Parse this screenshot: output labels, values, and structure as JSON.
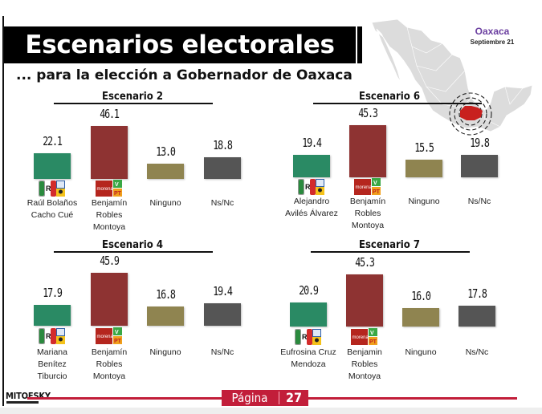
{
  "header": {
    "title": "Escenarios electorales",
    "subtitle": "... para la elección a Gobernador de Oaxaca"
  },
  "map": {
    "state": "Oaxaca",
    "date": "Septiembre 21",
    "highlight_color": "#c8201e"
  },
  "footer": {
    "brand": "MITOFSKY",
    "page_label": "Página",
    "page_number": "27",
    "accent_color": "#c21e3a"
  },
  "colors": {
    "candidate_a": "#2a8a64",
    "candidate_b": "#8e3332",
    "ninguno": "#8f8450",
    "nsnc": "#555555"
  },
  "chart_data": [
    {
      "type": "bar",
      "title": "Escenario 2",
      "categories": [
        "Raúl Bolaños Cacho Cué",
        "Benjamín Robles Montoya",
        "Ninguno",
        "Ns/Nc"
      ],
      "label_lines": [
        [
          "Raúl Bolaños",
          "Cacho Cué"
        ],
        [
          "Benjamín",
          "Robles",
          "Montoya"
        ],
        [
          "Ninguno"
        ],
        [
          "Ns/Nc"
        ]
      ],
      "values": [
        22.1,
        46.1,
        13.0,
        18.8
      ],
      "value_labels": [
        "22.1",
        "46.1",
        "13.0",
        "18.8"
      ],
      "logos": [
        "PRI-PAN-PRD",
        "morena-PVEM-PT",
        "",
        ""
      ],
      "ylabel": "",
      "xlabel": "",
      "ylim": [
        0,
        50
      ]
    },
    {
      "type": "bar",
      "title": "Escenario 6",
      "categories": [
        "Alejandro Avilés Álvarez",
        "Benjamín Robles Montoya",
        "Ninguno",
        "Ns/Nc"
      ],
      "label_lines": [
        [
          "Alejandro",
          "Avilés Álvarez"
        ],
        [
          "Benjamín",
          "Robles",
          "Montoya"
        ],
        [
          "Ninguno"
        ],
        [
          "Ns/Nc"
        ]
      ],
      "values": [
        19.4,
        45.3,
        15.5,
        19.8
      ],
      "value_labels": [
        "19.4",
        "45.3",
        "15.5",
        "19.8"
      ],
      "logos": [
        "PRI-PAN-PRD",
        "morena-PVEM-PT",
        "",
        ""
      ],
      "ylabel": "",
      "xlabel": "",
      "ylim": [
        0,
        50
      ]
    },
    {
      "type": "bar",
      "title": "Escenario 4",
      "categories": [
        "Mariana Benítez Tiburcio",
        "Benjamín Robles Montoya",
        "Ninguno",
        "Ns/Nc"
      ],
      "label_lines": [
        [
          "Mariana",
          "Benítez",
          "Tiburcio"
        ],
        [
          "Benjamín",
          "Robles",
          "Montoya"
        ],
        [
          "Ninguno"
        ],
        [
          "Ns/Nc"
        ]
      ],
      "values": [
        17.9,
        45.9,
        16.8,
        19.4
      ],
      "value_labels": [
        "17.9",
        "45.9",
        "16.8",
        "19.4"
      ],
      "logos": [
        "PRI-PAN-PRD",
        "morena-PVEM-PT",
        "",
        ""
      ],
      "ylabel": "",
      "xlabel": "",
      "ylim": [
        0,
        50
      ]
    },
    {
      "type": "bar",
      "title": "Escenario 7",
      "categories": [
        "Eufrosina Cruz Mendoza",
        "Benjamin Robles Montoya",
        "Ninguno",
        "Ns/Nc"
      ],
      "label_lines": [
        [
          "Eufrosina Cruz",
          "Mendoza"
        ],
        [
          "Benjamin",
          "Robles",
          "Montoya"
        ],
        [
          "Ninguno"
        ],
        [
          "Ns/Nc"
        ]
      ],
      "values": [
        20.9,
        45.3,
        16.0,
        17.8
      ],
      "value_labels": [
        "20.9",
        "45.3",
        "16.0",
        "17.8"
      ],
      "logos": [
        "PRI-PAN-PRD",
        "morena-PVEM-PT",
        "",
        ""
      ],
      "ylabel": "",
      "xlabel": "",
      "ylim": [
        0,
        50
      ]
    }
  ]
}
